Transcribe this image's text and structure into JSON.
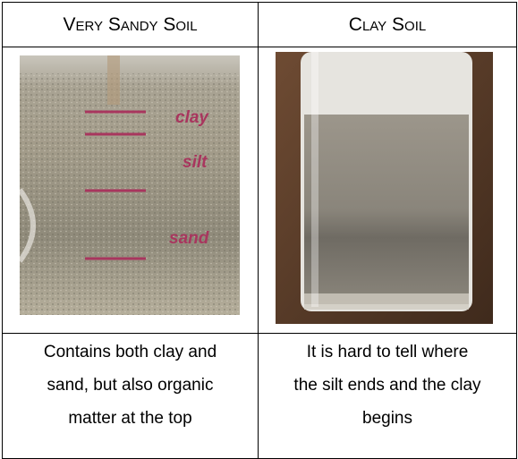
{
  "table": {
    "headers": [
      "Very Sandy Soil",
      "Clay Soil"
    ],
    "captions": [
      [
        "Contains both clay and",
        "sand, but also organic",
        "matter at the top"
      ],
      [
        "It is hard to tell where",
        "the silt ends and the clay",
        "begins"
      ]
    ]
  },
  "images": [
    {
      "labels": [
        "clay",
        "silt",
        "sand"
      ]
    }
  ]
}
